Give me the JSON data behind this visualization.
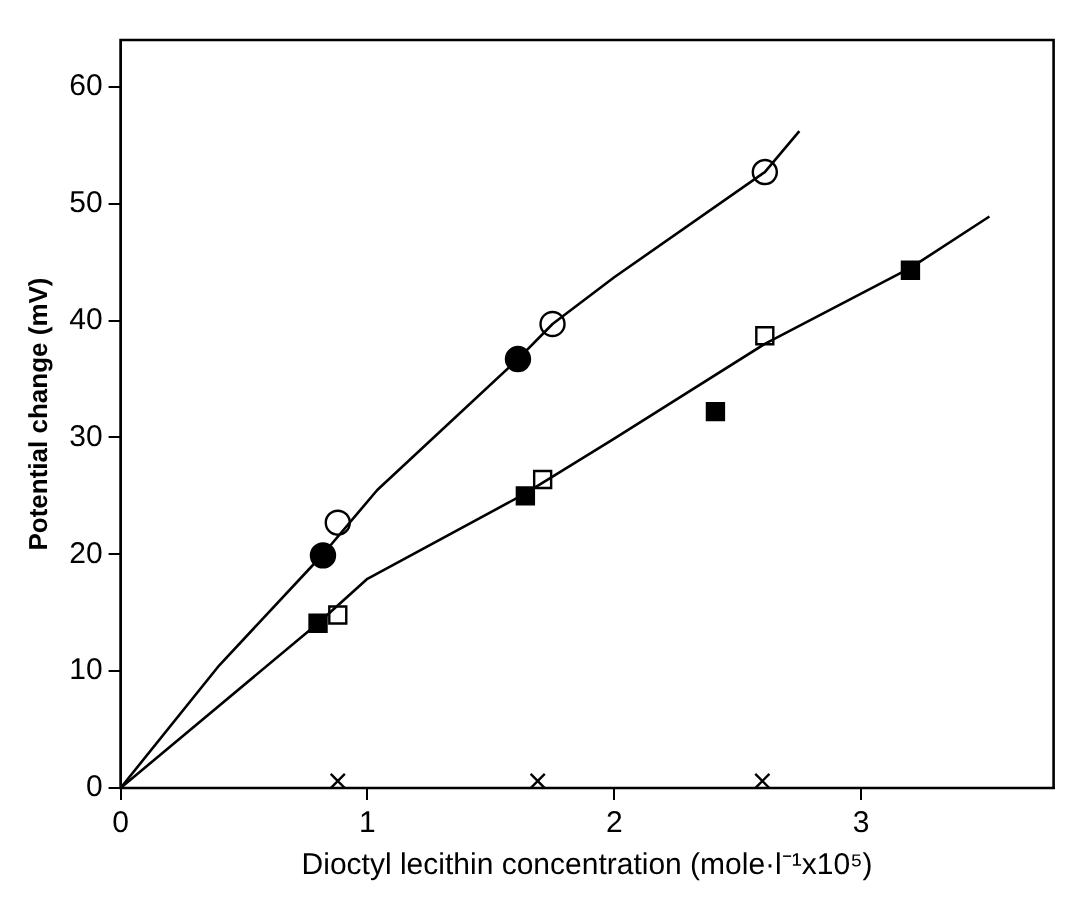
{
  "chart_data": {
    "type": "scatter",
    "xlabel": "Dioctyl lecithin concentration (mole·l⁻¹x10⁵)",
    "ylabel": "Potential change (mV)",
    "xlim": [
      0,
      3.78
    ],
    "ylim": [
      0,
      64
    ],
    "xticks": [
      0,
      1,
      2,
      3
    ],
    "yticks": [
      0,
      10,
      20,
      30,
      40,
      50,
      60
    ],
    "grid": false,
    "legend": false,
    "series": [
      {
        "type": "line",
        "color": "#000000",
        "marker": "none",
        "x": [
          0,
          0.4,
          0.82,
          1.04,
          1.61,
          1.75,
          2.0,
          2.61,
          2.75
        ],
        "values": [
          0,
          10.5,
          20,
          25.5,
          36.7,
          39.7,
          43.7,
          52.7,
          56.2
        ]
      },
      {
        "type": "line",
        "color": "#000000",
        "marker": "none",
        "x": [
          0,
          0.8,
          1.0,
          1.64,
          2.0,
          2.61,
          3.2,
          3.52
        ],
        "values": [
          0,
          14.1,
          17.9,
          25.2,
          29.9,
          38.0,
          44.5,
          48.9
        ]
      },
      {
        "type": "scatter",
        "color": "#ffffff",
        "marker": "circle",
        "x": [
          0.88,
          1.75,
          2.61
        ],
        "values": [
          22.7,
          39.7,
          52.7
        ]
      },
      {
        "type": "scatter",
        "color": "#000000",
        "marker": "circle",
        "x": [
          0.82,
          1.61
        ],
        "values": [
          19.9,
          36.7
        ]
      },
      {
        "type": "scatter",
        "color": "#ffffff",
        "marker": "square",
        "x": [
          0.88,
          1.71,
          2.61
        ],
        "values": [
          14.8,
          26.4,
          38.7
        ]
      },
      {
        "type": "scatter",
        "color": "#000000",
        "marker": "square",
        "x": [
          0.8,
          1.64,
          2.41,
          3.2
        ],
        "values": [
          14.1,
          25.0,
          32.2,
          44.3
        ]
      },
      {
        "type": "scatter",
        "color": "#000000",
        "marker": "cross",
        "x": [
          0.88,
          1.69,
          2.6
        ],
        "values": [
          0.6,
          0.6,
          0.6
        ]
      }
    ]
  }
}
